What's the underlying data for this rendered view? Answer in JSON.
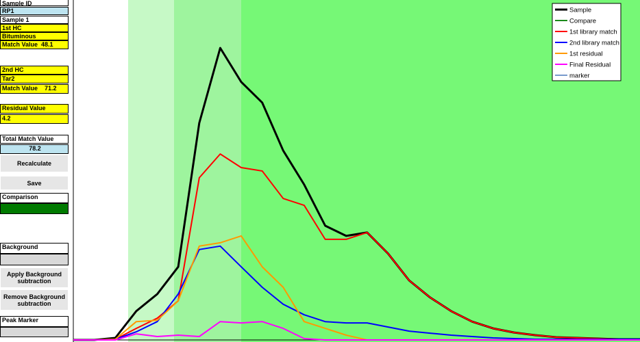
{
  "panel": [
    "Sample ID",
    "RP1",
    "Sample 1",
    "1st HC",
    "Bituminous",
    "Match Value  48.1",
    "2nd HC",
    "Tar2",
    "Match Value    71.2",
    "Residual Value",
    "4.2",
    "Total Match Value",
    "78.2",
    "Recalculate",
    "Save",
    "Comparison",
    "Background",
    "Apply  Background subtraction",
    "Remove Background subtraction",
    "Peak Marker"
  ],
  "chart_data": {
    "type": "line",
    "ylim": [
      0,
      100
    ],
    "legend": "top-right",
    "series": [
      {
        "name": "Sample",
        "color": "#000000",
        "values": [
          0,
          0,
          0.6,
          8.5,
          13.5,
          21.5,
          63.8,
          85.9,
          75.9,
          69.8,
          55.7,
          45.7,
          33.6,
          30.6,
          31.6,
          25.4,
          17.5,
          12.5,
          8.5,
          5.4,
          3.4,
          2.2,
          1.4,
          0.8,
          0.6,
          0.4,
          0.2,
          0.2
        ]
      },
      {
        "name": "Compare",
        "color": "#1a8a1a"
      },
      {
        "name": "1st library match",
        "color": "#ff0000",
        "values": [
          0,
          0,
          0.2,
          3.4,
          6.4,
          11.5,
          47.7,
          54.7,
          50.7,
          49.7,
          41.6,
          39.6,
          29.6,
          29.6,
          31.6,
          25.4,
          17.5,
          12.5,
          8.5,
          5.4,
          3.4,
          2.2,
          1.4,
          0.8,
          0.6,
          0.4,
          0.2,
          0.2
        ]
      },
      {
        "name": "2nd library match",
        "color": "#0000ff",
        "values": [
          0,
          0,
          0.2,
          2.4,
          5.4,
          13.5,
          26.6,
          27.6,
          21.5,
          15.5,
          10.5,
          7.4,
          5.4,
          5,
          5,
          3.8,
          2.6,
          2,
          1.4,
          1,
          0.6,
          0.4,
          0.2,
          0.2,
          0.2,
          0.2,
          0.2,
          0.2
        ]
      },
      {
        "name": "1st residual",
        "color": "#ff9900",
        "values": [
          0,
          0,
          0.2,
          5.4,
          5.8,
          11.5,
          27.6,
          28.6,
          30.6,
          21.5,
          15.5,
          5.4,
          3.4,
          1.4,
          0,
          0,
          0,
          0,
          0,
          0,
          0,
          0,
          0,
          0,
          0,
          0,
          0,
          0
        ]
      },
      {
        "name": "Final Residual",
        "color": "#ff00ff",
        "values": [
          0,
          0,
          0,
          1.8,
          1,
          1.4,
          1,
          5.4,
          5,
          5.4,
          3.4,
          0.4,
          0,
          0,
          0,
          0,
          0,
          0,
          0,
          0,
          0,
          0,
          0,
          0,
          0,
          0,
          0,
          0
        ]
      },
      {
        "name": "marker",
        "color": "#7799cc"
      }
    ]
  }
}
